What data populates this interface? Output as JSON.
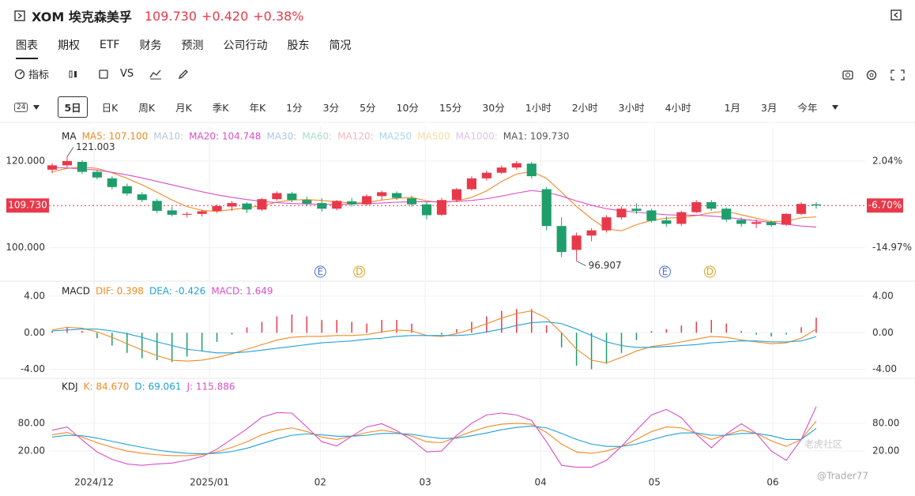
{
  "header": {
    "ticker": "XOM 埃克森美孚",
    "price": "109.730",
    "change": "+0.420",
    "change_pct": "+0.38%"
  },
  "tabs": [
    "图表",
    "期权",
    "ETF",
    "财务",
    "预测",
    "公司行动",
    "股东",
    "简况"
  ],
  "toolbar": [
    "指标",
    "VS"
  ],
  "period_badge": "24",
  "periods": [
    "5日",
    "日K",
    "周K",
    "月K",
    "季K",
    "年K",
    "1分",
    "3分",
    "5分",
    "10分",
    "15分",
    "30分",
    "1小时",
    "2小时",
    "3小时",
    "4小时",
    "1月",
    "3月",
    "今年"
  ],
  "watermark": "老虎社区",
  "watermark_user": "@Trader77",
  "chart": {
    "type": "candlestick",
    "up_color": "#e8394a",
    "down_color": "#1e9e6a",
    "ylim": [
      93,
      128
    ],
    "yticks": [
      {
        "value": 100,
        "label": "100.000"
      },
      {
        "value": 120,
        "label": "120.000"
      }
    ],
    "y2lim": [
      -20.92,
      8.84
    ],
    "y2ticks": [
      {
        "value": 2.04,
        "label": "2.04%"
      },
      {
        "value": -14.97,
        "label": "-14.97%"
      }
    ],
    "last_price_label": "109.730",
    "last_pct_label": "-6.70%",
    "xticks": [
      {
        "value": 2.8,
        "label": "2024/12"
      },
      {
        "value": 10.5,
        "label": "2025/01"
      },
      {
        "value": 17.9,
        "label": "02"
      },
      {
        "value": 24.9,
        "label": "03"
      },
      {
        "value": 32.6,
        "label": "04"
      },
      {
        "value": 40.2,
        "label": "05"
      },
      {
        "value": 48.1,
        "label": "06"
      }
    ],
    "events": [
      {
        "label": "E",
        "x": 17.9,
        "color": "#4a6fd8"
      },
      {
        "label": "D",
        "x": 20.5,
        "color": "#d9a21b"
      },
      {
        "label": "E",
        "x": 40.9,
        "color": "#4a6fd8"
      },
      {
        "label": "D",
        "x": 43.9,
        "color": "#d9a21b"
      }
    ],
    "legend": [
      {
        "text": "MA",
        "color": "#222222"
      },
      {
        "text": "MA5: 107.100",
        "color": "#f08a24"
      },
      {
        "text": "MA10:",
        "color": "#b9c6d8"
      },
      {
        "text": "MA20: 104.748",
        "color": "#d94fc9"
      },
      {
        "text": "MA30:",
        "color": "#a9c8e8"
      },
      {
        "text": "MA60:",
        "color": "#a8dccf"
      },
      {
        "text": "MA120:",
        "color": "#f2b6c6"
      },
      {
        "text": "MA250",
        "color": "#a6d6f0"
      },
      {
        "text": "MA500",
        "color": "#f5dca0"
      },
      {
        "text": "MA1000:",
        "color": "#d8c4ea"
      },
      {
        "text": "MA1: 109.730",
        "color": "#555555"
      }
    ],
    "candles": [
      [
        118.0,
        119.5,
        117.2,
        119.0
      ],
      [
        119.0,
        121.003,
        118.5,
        120.0
      ],
      [
        119.8,
        120.2,
        117.0,
        117.5
      ],
      [
        117.5,
        118.0,
        115.8,
        116.2
      ],
      [
        116.0,
        116.5,
        113.5,
        114.0
      ],
      [
        114.2,
        114.8,
        112.0,
        112.5
      ],
      [
        112.3,
        112.8,
        110.5,
        111.0
      ],
      [
        110.8,
        111.2,
        108.0,
        108.5
      ],
      [
        108.6,
        109.5,
        107.2,
        107.6
      ],
      [
        107.6,
        108.3,
        107.0,
        107.8
      ],
      [
        107.8,
        108.8,
        107.2,
        108.4
      ],
      [
        108.5,
        110.0,
        108.0,
        109.6
      ],
      [
        109.5,
        110.8,
        108.5,
        110.3
      ],
      [
        110.2,
        110.5,
        108.0,
        108.8
      ],
      [
        108.8,
        111.5,
        108.5,
        111.2
      ],
      [
        111.2,
        113.0,
        110.8,
        112.6
      ],
      [
        112.5,
        112.9,
        110.5,
        111.0
      ],
      [
        111.0,
        111.8,
        109.6,
        110.2
      ],
      [
        110.3,
        111.4,
        108.3,
        109.0
      ],
      [
        109.0,
        111.0,
        108.6,
        110.8
      ],
      [
        110.7,
        111.5,
        109.5,
        110.0
      ],
      [
        110.0,
        112.3,
        109.8,
        111.9
      ],
      [
        111.9,
        113.2,
        111.0,
        112.8
      ],
      [
        112.6,
        113.0,
        111.0,
        111.5
      ],
      [
        111.4,
        112.0,
        109.5,
        110.0
      ],
      [
        110.0,
        110.5,
        106.5,
        107.5
      ],
      [
        107.6,
        111.5,
        107.3,
        111.0
      ],
      [
        111.0,
        113.8,
        110.5,
        113.5
      ],
      [
        113.5,
        116.5,
        113.2,
        116.0
      ],
      [
        116.0,
        117.8,
        115.5,
        117.3
      ],
      [
        117.3,
        119.0,
        117.0,
        118.5
      ],
      [
        118.5,
        120.0,
        118.0,
        119.5
      ],
      [
        119.4,
        119.8,
        116.0,
        116.5
      ],
      [
        113.5,
        114.0,
        104.0,
        105.0
      ],
      [
        105.0,
        107.0,
        97.8,
        99.0
      ],
      [
        99.5,
        103.5,
        96.907,
        102.8
      ],
      [
        102.8,
        104.5,
        101.5,
        104.0
      ],
      [
        104.0,
        107.5,
        103.5,
        107.0
      ],
      [
        107.0,
        109.5,
        106.5,
        109.0
      ],
      [
        109.0,
        110.2,
        107.8,
        108.5
      ],
      [
        108.6,
        109.0,
        105.8,
        106.2
      ],
      [
        106.3,
        107.2,
        104.8,
        105.5
      ],
      [
        105.5,
        108.5,
        105.0,
        108.2
      ],
      [
        108.2,
        111.0,
        108.0,
        110.5
      ],
      [
        110.5,
        111.0,
        108.5,
        109.0
      ],
      [
        109.0,
        109.3,
        106.0,
        106.5
      ],
      [
        106.4,
        107.0,
        104.8,
        105.5
      ],
      [
        105.5,
        106.5,
        104.5,
        105.9
      ],
      [
        105.9,
        106.3,
        104.8,
        105.2
      ],
      [
        105.3,
        108.0,
        105.0,
        107.8
      ],
      [
        107.8,
        110.5,
        107.5,
        110.1
      ],
      [
        110.0,
        110.5,
        109.0,
        109.73
      ]
    ],
    "series": [
      {
        "name": "MA5",
        "color": "#f08a24",
        "values": [
          117.5,
          118.3,
          118.6,
          118.3,
          117.3,
          116.0,
          114.5,
          112.8,
          111.0,
          109.5,
          108.6,
          108.4,
          108.8,
          109.2,
          109.7,
          110.5,
          111.0,
          111.1,
          110.9,
          110.6,
          110.3,
          110.4,
          111.0,
          111.4,
          111.6,
          110.8,
          110.4,
          110.8,
          111.6,
          113.1,
          115.3,
          117.0,
          117.6,
          116.0,
          112.8,
          109.5,
          106.7,
          104.3,
          103.9,
          105.3,
          106.3,
          106.8,
          107.0,
          107.4,
          108.1,
          108.4,
          107.6,
          106.8,
          106.0,
          106.1,
          106.9,
          107.1
        ]
      },
      {
        "name": "MA20",
        "color": "#d94fc9",
        "values": [
          118.5,
          118.4,
          118.2,
          117.9,
          117.4,
          116.8,
          116.1,
          115.3,
          114.5,
          113.7,
          112.9,
          112.2,
          111.6,
          111.1,
          110.7,
          110.4,
          110.2,
          110.1,
          110.0,
          110.0,
          110.1,
          110.2,
          110.3,
          110.5,
          110.6,
          110.6,
          110.6,
          110.7,
          110.9,
          111.3,
          111.9,
          112.6,
          113.2,
          112.8,
          111.9,
          110.8,
          109.8,
          109.0,
          108.5,
          108.2,
          107.9,
          107.6,
          107.5,
          107.5,
          107.3,
          107.0,
          106.6,
          106.2,
          105.8,
          105.4,
          105.0,
          104.75
        ]
      }
    ],
    "macd": {
      "ylim": [
        -4.9,
        5.3
      ],
      "yticks": [
        {
          "value": 4,
          "label": "4.00"
        },
        {
          "value": 0,
          "label": "0.00"
        },
        {
          "value": -4,
          "label": "-4.00"
        }
      ],
      "legend": [
        {
          "text": "MACD",
          "color": "#222222"
        },
        {
          "text": "DIF: 0.398",
          "color": "#f08a24"
        },
        {
          "text": "DEA: -0.426",
          "color": "#1fa0d8"
        },
        {
          "text": "MACD: 1.649",
          "color": "#d94fc9"
        }
      ],
      "dif": {
        "color": "#f08a24",
        "values": [
          0.3,
          0.6,
          0.5,
          0.1,
          -0.5,
          -1.2,
          -1.9,
          -2.5,
          -3.0,
          -3.1,
          -3.0,
          -2.7,
          -2.3,
          -1.8,
          -1.3,
          -0.8,
          -0.5,
          -0.4,
          -0.4,
          -0.3,
          -0.3,
          -0.2,
          0.1,
          0.3,
          0.2,
          -0.3,
          -0.4,
          -0.1,
          0.4,
          1.0,
          1.6,
          2.1,
          2.4,
          1.6,
          0.0,
          -1.8,
          -3.0,
          -3.3,
          -2.7,
          -2.0,
          -1.5,
          -1.3,
          -1.0,
          -0.7,
          -0.4,
          -0.5,
          -0.8,
          -1.0,
          -1.2,
          -1.1,
          -0.6,
          0.398
        ]
      },
      "dea": {
        "color": "#1fa0d8",
        "values": [
          0.2,
          0.3,
          0.4,
          0.4,
          0.2,
          -0.1,
          -0.5,
          -1.0,
          -1.4,
          -1.8,
          -2.0,
          -2.2,
          -2.2,
          -2.1,
          -1.9,
          -1.7,
          -1.5,
          -1.3,
          -1.1,
          -1.0,
          -0.9,
          -0.7,
          -0.6,
          -0.4,
          -0.3,
          -0.3,
          -0.3,
          -0.3,
          -0.2,
          0.1,
          0.4,
          0.8,
          1.1,
          1.2,
          1.0,
          0.4,
          -0.3,
          -1.0,
          -1.4,
          -1.6,
          -1.6,
          -1.5,
          -1.4,
          -1.3,
          -1.1,
          -1.0,
          -0.9,
          -0.9,
          -1.0,
          -1.0,
          -0.9,
          -0.426
        ]
      },
      "hist": [
        0.2,
        0.6,
        0.2,
        -0.6,
        -1.4,
        -2.2,
        -2.8,
        -3.0,
        -3.2,
        -2.6,
        -2.0,
        -1.0,
        -0.2,
        0.6,
        1.2,
        1.8,
        2.0,
        1.8,
        1.4,
        1.4,
        1.2,
        1.0,
        1.4,
        1.4,
        1.0,
        0.0,
        -0.2,
        0.4,
        1.2,
        1.8,
        2.4,
        2.6,
        2.6,
        0.8,
        -1.6,
        -3.6,
        -4.0,
        -3.4,
        -2.2,
        -0.8,
        0.2,
        0.4,
        0.8,
        1.2,
        1.4,
        1.0,
        0.2,
        -0.2,
        -0.4,
        -0.2,
        0.6,
        1.649
      ]
    },
    "kdj": {
      "ylim": [
        -26,
        172
      ],
      "yticks": [
        {
          "value": 80,
          "label": "80.00"
        },
        {
          "value": 20,
          "label": "20.00"
        }
      ],
      "legend": [
        {
          "text": "KDJ",
          "color": "#222222"
        },
        {
          "text": "K: 84.670",
          "color": "#f08a24"
        },
        {
          "text": "D: 69.061",
          "color": "#1fa0d8"
        },
        {
          "text": "J: 115.886",
          "color": "#d94fc9"
        }
      ],
      "series": [
        {
          "name": "K",
          "color": "#f08a24",
          "values": [
            55,
            60,
            50,
            38,
            28,
            20,
            15,
            12,
            10,
            10,
            12,
            18,
            28,
            40,
            55,
            65,
            70,
            62,
            50,
            45,
            52,
            60,
            65,
            60,
            52,
            40,
            38,
            50,
            62,
            72,
            78,
            80,
            78,
            60,
            35,
            18,
            15,
            20,
            30,
            45,
            62,
            72,
            70,
            58,
            45,
            55,
            65,
            58,
            42,
            30,
            45,
            84.67
          ]
        },
        {
          "name": "D",
          "color": "#1fa0d8",
          "values": [
            50,
            54,
            53,
            48,
            41,
            34,
            28,
            22,
            18,
            15,
            14,
            15,
            19,
            26,
            36,
            46,
            54,
            57,
            55,
            52,
            52,
            54,
            58,
            58,
            56,
            51,
            47,
            48,
            53,
            59,
            66,
            71,
            74,
            70,
            58,
            45,
            35,
            30,
            30,
            35,
            44,
            53,
            59,
            59,
            54,
            54,
            58,
            58,
            53,
            45,
            45,
            69.061
          ]
        },
        {
          "name": "J",
          "color": "#d94fc9",
          "values": [
            65,
            72,
            44,
            18,
            2,
            -8,
            -11,
            -8,
            -6,
            0,
            8,
            24,
            46,
            68,
            93,
            103,
            102,
            72,
            40,
            31,
            52,
            72,
            79,
            64,
            44,
            18,
            20,
            54,
            80,
            98,
            102,
            98,
            86,
            40,
            -11,
            -15,
            -15,
            0,
            30,
            65,
            98,
            110,
            92,
            56,
            27,
            57,
            79,
            58,
            20,
            0,
            45,
            115.886
          ]
        }
      ]
    }
  }
}
